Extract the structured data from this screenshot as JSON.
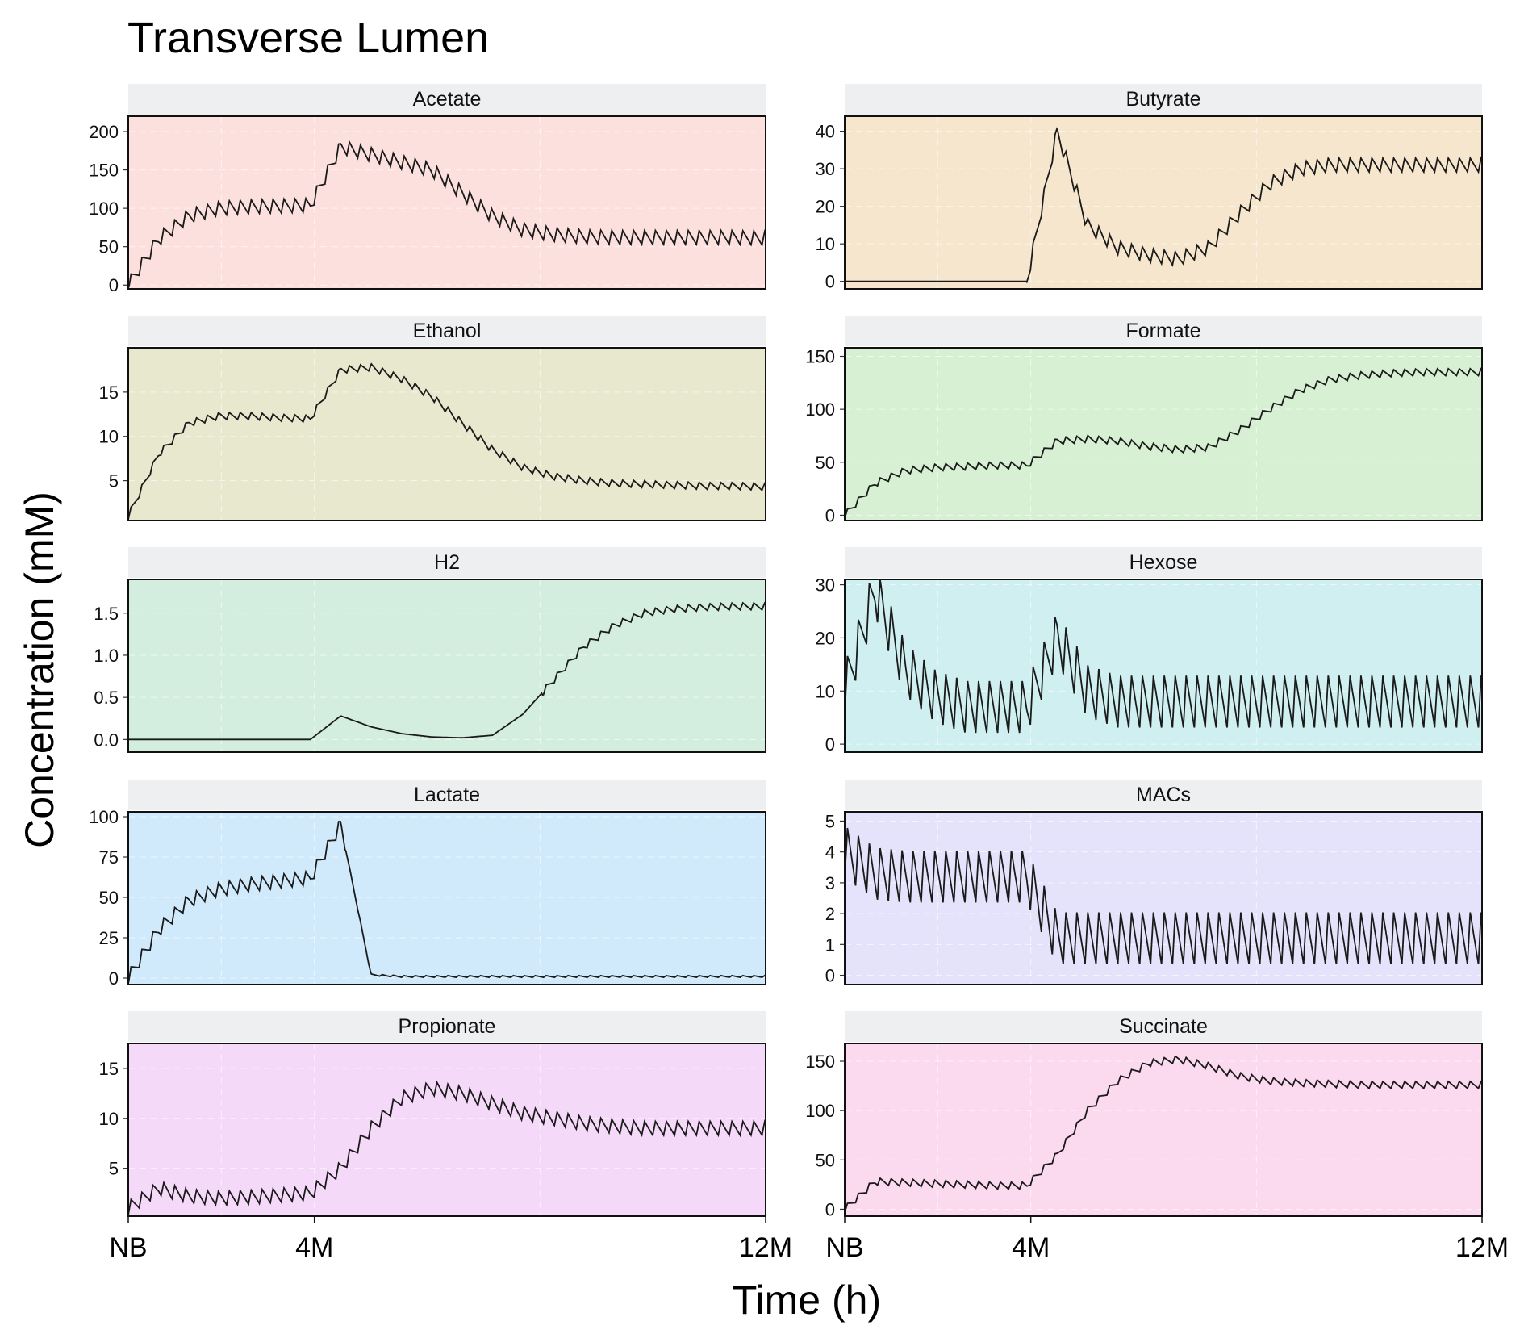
{
  "title": "Transverse Lumen",
  "xlabel": "Time (h)",
  "ylabel": "Concentration (mM)",
  "x_tick_labels": [
    "NB",
    "4M",
    "12M"
  ],
  "chart_data": [
    {
      "type": "line",
      "title": "Acetate",
      "bg": "#fce0de",
      "yticks": [
        0,
        50,
        100,
        150,
        200
      ],
      "ylim": [
        -5,
        220
      ],
      "series": [
        {
          "values": [
            0,
            60,
            90,
            100,
            102,
            103,
            104,
            180,
            170,
            160,
            150,
            120,
            90,
            72,
            66,
            63,
            62,
            62,
            62,
            62,
            62,
            61
          ]
        }
      ]
    },
    {
      "type": "line",
      "title": "Butyrate",
      "bg": "#f5e6cd",
      "yticks": [
        0,
        10,
        20,
        30,
        40
      ],
      "ylim": [
        -2,
        44
      ],
      "series": [
        {
          "values": [
            0,
            0,
            0,
            0,
            0,
            0,
            0,
            40,
            15,
            9,
            7,
            6,
            9,
            18,
            26,
            30,
            31,
            31,
            31,
            31,
            31,
            31
          ]
        }
      ]
    },
    {
      "type": "line",
      "title": "Ethanol",
      "bg": "#e8e8cf",
      "yticks": [
        5,
        10,
        15
      ],
      "ylim": [
        0.5,
        20
      ],
      "series": [
        {
          "values": [
            1,
            8,
            11.5,
            12.3,
            12.3,
            12.1,
            12,
            17.5,
            17.8,
            16.5,
            14.5,
            11.5,
            8.5,
            6.5,
            5.5,
            5,
            4.7,
            4.6,
            4.5,
            4.4,
            4.4,
            4.3
          ]
        }
      ]
    },
    {
      "type": "line",
      "title": "Formate",
      "bg": "#d7efd3",
      "yticks": [
        0,
        50,
        100,
        150
      ],
      "ylim": [
        -5,
        158
      ],
      "series": [
        {
          "values": [
            0,
            30,
            42,
            45,
            46,
            47,
            47,
            70,
            72,
            70,
            65,
            62,
            64,
            80,
            100,
            118,
            128,
            132,
            134,
            135,
            135,
            135
          ]
        }
      ]
    },
    {
      "type": "line",
      "title": "H2",
      "bg": "#d3eedf",
      "yticks": [
        0.0,
        0.5,
        1.0,
        1.5
      ],
      "ylim": [
        -0.15,
        1.9
      ],
      "series": [
        {
          "values": [
            0,
            0,
            0,
            0,
            0,
            0,
            0,
            0.28,
            0.15,
            0.07,
            0.03,
            0.02,
            0.05,
            0.3,
            0.7,
            1.1,
            1.35,
            1.5,
            1.55,
            1.57,
            1.58,
            1.58
          ]
        }
      ]
    },
    {
      "type": "line",
      "title": "Hexose",
      "bg": "#cfeff0",
      "yticks": [
        0,
        10,
        20,
        30
      ],
      "ylim": [
        -1.5,
        31
      ],
      "series": [
        {
          "values": [
            10,
            29,
            14,
            9,
            7,
            7,
            7,
            20,
            10,
            8,
            8,
            8,
            8,
            8,
            8,
            8,
            8,
            8,
            8,
            8,
            8,
            8
          ]
        }
      ]
    },
    {
      "type": "line",
      "title": "Lactate",
      "bg": "#d0e9fb",
      "yticks": [
        0,
        25,
        50,
        75,
        100
      ],
      "ylim": [
        -4,
        103
      ],
      "series": [
        {
          "values": [
            0,
            30,
            48,
            55,
            58,
            60,
            62,
            95,
            2,
            1,
            1,
            1,
            1,
            1,
            1,
            1,
            1,
            1,
            1,
            1,
            1,
            1
          ]
        }
      ]
    },
    {
      "type": "line",
      "title": "MACs",
      "bg": "#e5e3fb",
      "yticks": [
        0,
        1,
        2,
        3,
        4,
        5
      ],
      "ylim": [
        -0.3,
        5.3
      ],
      "series": [
        {
          "values": [
            4,
            3.3,
            3.2,
            3.2,
            3.2,
            3.2,
            3.2,
            1.2,
            1.2,
            1.2,
            1.2,
            1.2,
            1.2,
            1.2,
            1.2,
            1.2,
            1.2,
            1.2,
            1.2,
            1.2,
            1.2,
            1.2
          ]
        }
      ]
    },
    {
      "type": "line",
      "title": "Propionate",
      "bg": "#f5d9f9",
      "yticks": [
        5,
        10,
        15
      ],
      "ylim": [
        0.2,
        17.5
      ],
      "series": [
        {
          "values": [
            1,
            3,
            2.2,
            2,
            2.1,
            2.3,
            2.5,
            5,
            9,
            12,
            13,
            12.5,
            11.5,
            10.5,
            10,
            9.5,
            9.2,
            9,
            9,
            9,
            9,
            9
          ]
        }
      ]
    },
    {
      "type": "line",
      "title": "Succinate",
      "bg": "#fbd9ef",
      "yticks": [
        0,
        50,
        100,
        150
      ],
      "ylim": [
        -7,
        168
      ],
      "series": [
        {
          "values": [
            0,
            28,
            27,
            26,
            25,
            24,
            24,
            55,
            100,
            130,
            148,
            152,
            145,
            135,
            130,
            128,
            127,
            126,
            126,
            126,
            126,
            126
          ]
        }
      ]
    }
  ]
}
